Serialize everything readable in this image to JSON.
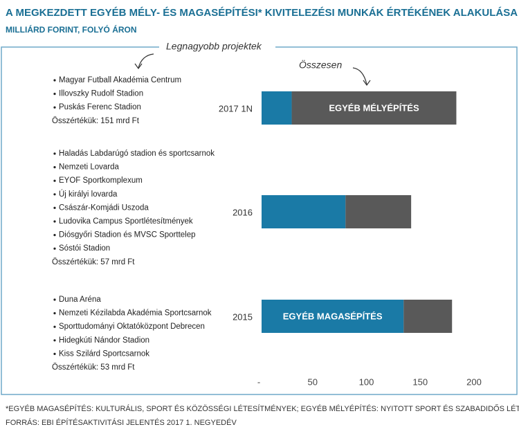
{
  "chart_data": {
    "type": "stacked-bar-horizontal",
    "title": "A MEGKEZDETT EGYÉB MÉLY- ÉS MAGASÉPÍTÉSI* KIVITELEZÉSI MUNKÁK ÉRTÉKÉNEK ALAKULÁSA",
    "subtitle": "MILLIÁRD FORINT, FOLYÓ ÁRON",
    "annotations": [
      "Legnagyobb projektek",
      "Összesen"
    ],
    "categories": [
      "2017 1N",
      "2016",
      "2015"
    ],
    "series": [
      {
        "name": "EGYÉB MAGASÉPÍTÉS",
        "color": "#1a7aa6",
        "values": [
          28,
          78,
          132
        ]
      },
      {
        "name": "EGYÉB MÉLYÉPÍTÉS",
        "color": "#595959",
        "values": [
          153,
          61,
          45
        ]
      }
    ],
    "xlim": [
      0,
      200
    ],
    "xticks": [
      {
        "value": 0,
        "label": "-"
      },
      50,
      100,
      150,
      200
    ],
    "grid": false,
    "projects": [
      {
        "items": [
          "Magyar Futball Akadémia Centrum",
          "Illovszky Rudolf Stadion",
          "Puskás Ferenc Stadion"
        ],
        "total": "Összértékük: 151 mrd Ft"
      },
      {
        "items": [
          "Haladás Labdarúgó stadion és sportcsarnok",
          "Nemzeti Lovarda",
          "EYOF Sportkomplexum",
          "Új királyi lovarda",
          "Császár-Komjádi Uszoda",
          "Ludovika Campus Sportlétesítmények",
          "Diósgyőri Stadion és MVSC Sporttelep",
          "Sóstói Stadion"
        ],
        "total": "Összértékük: 57 mrd Ft"
      },
      {
        "items": [
          "Duna Aréna",
          "Nemzeti Kézilabda Akadémia Sportcsarnok",
          "Sporttudományi Oktatóközpont Debrecen",
          "Hidegkúti Nándor Stadion",
          "Kiss Szilárd Sportcsarnok"
        ],
        "total": "Összértékük: 53 mrd Ft"
      }
    ],
    "notes": [
      "*EGYÉB MAGASÉPÍTÉS: KULTURÁLIS, SPORT ÉS KÖZÖSSÉGI LÉTESÍTMÉNYEK; EGYÉB MÉLYÉPÍTÉS: NYITOTT SPORT ÉS SZABADIDŐS LÉTESÍTMÉNYEK",
      "FORRÁS: EBI ÉPÍTÉSAKTIVITÁSI JELENTÉS 2017 1. NEGYEDÉV"
    ]
  }
}
